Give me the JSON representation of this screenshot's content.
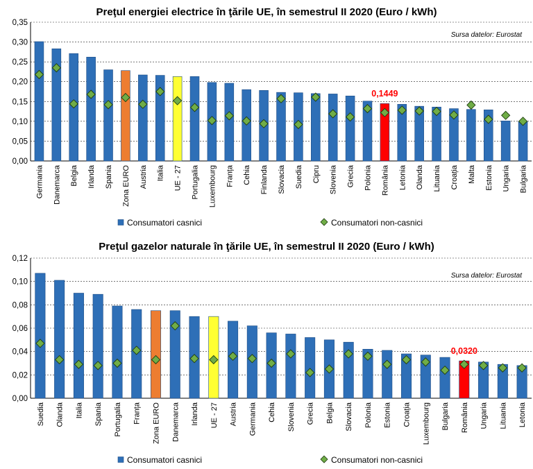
{
  "colors": {
    "bar": "#2e6fb7",
    "bar_stroke": "#1f4e86",
    "euro_zone": "#ed7d31",
    "eu27": "#ffff33",
    "romania": "#ff0000",
    "marker": "#70ad47",
    "marker_stroke": "#1e3d10",
    "callout": "#ff0000"
  },
  "chart_data": [
    {
      "type": "bar",
      "title": "Preţul energiei electrice în ţările UE, în semestrul II 2020 (Euro / kWh)",
      "source": "Sursa datelor: Eurostat",
      "ylim": [
        0,
        0.35
      ],
      "yticks": [
        "0,00",
        "0,05",
        "0,10",
        "0,15",
        "0,20",
        "0,25",
        "0,30",
        "0,35"
      ],
      "ytick_values": [
        0,
        0.05,
        0.1,
        0.15,
        0.2,
        0.25,
        0.3,
        0.35
      ],
      "grid": true,
      "legend_position": "bottom",
      "categories": [
        "Germania",
        "Danemarca",
        "Belgia",
        "Irlanda",
        "Spania",
        "Zona EURO",
        "Austria",
        "Italia",
        "UE - 27",
        "Portugalia",
        "Luxembourg",
        "Franța",
        "Cehia",
        "Finlanda",
        "Slovacia",
        "Suedia",
        "Cipru",
        "Slovenia",
        "Grecia",
        "Polonia",
        "România",
        "Letonia",
        "Olanda",
        "Lituania",
        "Croația",
        "Malta",
        "Estonia",
        "Ungaria",
        "Bulgaria"
      ],
      "series": [
        {
          "name": "Consumatori casnici",
          "kind": "bar",
          "values": [
            0.301,
            0.283,
            0.271,
            0.262,
            0.23,
            0.228,
            0.217,
            0.216,
            0.213,
            0.213,
            0.198,
            0.196,
            0.18,
            0.178,
            0.173,
            0.172,
            0.17,
            0.169,
            0.164,
            0.151,
            0.1449,
            0.143,
            0.138,
            0.136,
            0.132,
            0.13,
            0.129,
            0.101,
            0.1
          ]
        },
        {
          "name": "Consumatori non-casnici",
          "kind": "marker",
          "values": [
            0.218,
            0.235,
            0.144,
            0.168,
            0.142,
            0.16,
            0.143,
            0.175,
            0.152,
            0.135,
            0.102,
            0.114,
            0.101,
            0.094,
            0.157,
            0.092,
            0.161,
            0.119,
            0.111,
            0.132,
            0.122,
            0.128,
            0.126,
            0.125,
            0.116,
            0.141,
            0.105,
            0.115,
            0.1
          ]
        }
      ],
      "highlights": {
        "Zona EURO": "euro_zone",
        "UE - 27": "eu27",
        "România": "romania"
      },
      "annotation": {
        "text": "0,1449",
        "category": "România"
      }
    },
    {
      "type": "bar",
      "title": "Preţul gazelor naturale în ţările UE, în semestrul II 2020 (Euro / kWh)",
      "source": "Sursa datelor: Eurostat",
      "ylim": [
        0,
        0.12
      ],
      "yticks": [
        "0,00",
        "0,02",
        "0,04",
        "0,06",
        "0,08",
        "0,10",
        "0,12"
      ],
      "ytick_values": [
        0,
        0.02,
        0.04,
        0.06,
        0.08,
        0.1,
        0.12
      ],
      "grid": true,
      "legend_position": "bottom",
      "categories": [
        "Suedia",
        "Olanda",
        "Italia",
        "Spania",
        "Portugalia",
        "Franța",
        "Zona EURO",
        "Danemarca",
        "Irlanda",
        "UE - 27",
        "Austria",
        "Germania",
        "Cehia",
        "Slovenia",
        "Grecia",
        "Belgia",
        "Slovacia",
        "Polonia",
        "Estonia",
        "Croația",
        "Luxembourg",
        "Bulgaria",
        "România",
        "Ungaria",
        "Lituania",
        "Letonia"
      ],
      "series": [
        {
          "name": "Consumatori casnici",
          "kind": "bar",
          "values": [
            0.107,
            0.101,
            0.09,
            0.089,
            0.079,
            0.076,
            0.075,
            0.075,
            0.07,
            0.07,
            0.066,
            0.062,
            0.056,
            0.055,
            0.052,
            0.05,
            0.048,
            0.042,
            0.041,
            0.038,
            0.037,
            0.035,
            0.032,
            0.031,
            0.029,
            0.028
          ]
        },
        {
          "name": "Consumatori non-casnici",
          "kind": "marker",
          "values": [
            0.047,
            0.033,
            0.029,
            0.028,
            0.03,
            0.041,
            0.033,
            0.062,
            0.034,
            0.033,
            0.036,
            0.034,
            0.03,
            0.038,
            0.022,
            0.025,
            0.038,
            0.036,
            0.029,
            0.033,
            0.031,
            0.024,
            0.029,
            0.028,
            0.026,
            0.026
          ]
        }
      ],
      "highlights": {
        "Zona EURO": "euro_zone",
        "UE - 27": "eu27",
        "România": "romania"
      },
      "annotation": {
        "text": "0,0320",
        "category": "România"
      }
    }
  ]
}
